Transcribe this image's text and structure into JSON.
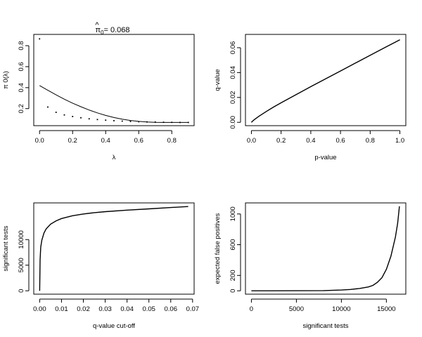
{
  "chart_data": [
    {
      "type": "scatter",
      "title_base": "π",
      "title_sub": "0",
      "title_rest": "= 0.068",
      "title_hat": "^",
      "xlabel": "λ",
      "ylabel": "π 0(λ)",
      "xlim": [
        -0.035,
        0.935
      ],
      "ylim": [
        0.0375,
        0.9075
      ],
      "xticks": [
        0,
        0.2,
        0.4,
        0.6,
        0.8
      ],
      "xtick_labels": [
        "0.0",
        "0.2",
        "0.4",
        "0.6",
        "0.8"
      ],
      "yticks": [
        0.2,
        0.4,
        0.6,
        0.8
      ],
      "ytick_labels": [
        "0.2",
        "0.4",
        "0.6",
        "0.8"
      ],
      "points": [
        [
          0.0,
          0.865
        ],
        [
          0.05,
          0.215
        ],
        [
          0.1,
          0.165
        ],
        [
          0.15,
          0.14
        ],
        [
          0.2,
          0.125
        ],
        [
          0.25,
          0.113
        ],
        [
          0.3,
          0.103
        ],
        [
          0.35,
          0.096
        ],
        [
          0.4,
          0.09
        ],
        [
          0.45,
          0.085
        ],
        [
          0.5,
          0.081
        ],
        [
          0.55,
          0.078
        ],
        [
          0.6,
          0.075
        ],
        [
          0.65,
          0.073
        ],
        [
          0.7,
          0.072
        ],
        [
          0.75,
          0.07
        ],
        [
          0.8,
          0.069
        ],
        [
          0.85,
          0.068
        ],
        [
          0.9,
          0.068
        ]
      ],
      "line": [
        [
          0.0,
          0.42
        ],
        [
          0.05,
          0.375
        ],
        [
          0.1,
          0.331
        ],
        [
          0.15,
          0.29
        ],
        [
          0.2,
          0.252
        ],
        [
          0.25,
          0.218
        ],
        [
          0.3,
          0.187
        ],
        [
          0.35,
          0.159
        ],
        [
          0.4,
          0.135
        ],
        [
          0.45,
          0.115
        ],
        [
          0.5,
          0.099
        ],
        [
          0.55,
          0.087
        ],
        [
          0.6,
          0.078
        ],
        [
          0.65,
          0.072
        ],
        [
          0.7,
          0.069
        ],
        [
          0.75,
          0.068
        ],
        [
          0.8,
          0.068
        ],
        [
          0.85,
          0.068
        ],
        [
          0.9,
          0.068
        ]
      ]
    },
    {
      "type": "line",
      "xlabel": "p-value",
      "ylabel": "q-value",
      "xlim": [
        -0.04,
        1.04
      ],
      "ylim": [
        -0.0027,
        0.0707
      ],
      "xticks": [
        0,
        0.2,
        0.4,
        0.6,
        0.8,
        1.0
      ],
      "xtick_labels": [
        "0.0",
        "0.2",
        "0.4",
        "0.6",
        "0.8",
        "1.0"
      ],
      "yticks": [
        0,
        0.02,
        0.04,
        0.06
      ],
      "ytick_labels": [
        "0.00",
        "0.02",
        "0.04",
        "0.06"
      ],
      "line": [
        [
          0.0,
          0.0
        ],
        [
          0.01,
          0.0012
        ],
        [
          0.02,
          0.0022
        ],
        [
          0.05,
          0.0048
        ],
        [
          0.1,
          0.0087
        ],
        [
          0.15,
          0.0123
        ],
        [
          0.2,
          0.0157
        ],
        [
          0.3,
          0.0222
        ],
        [
          0.4,
          0.0287
        ],
        [
          0.5,
          0.035
        ],
        [
          0.6,
          0.0413
        ],
        [
          0.7,
          0.0476
        ],
        [
          0.8,
          0.0539
        ],
        [
          0.9,
          0.0602
        ],
        [
          1.0,
          0.0664
        ]
      ]
    },
    {
      "type": "line",
      "xlabel": "q-value cut-off",
      "ylabel": "significant tests",
      "xlim": [
        -0.0027,
        0.0707
      ],
      "ylim": [
        -660,
        17160
      ],
      "xticks": [
        0,
        0.01,
        0.02,
        0.03,
        0.04,
        0.05,
        0.06,
        0.07
      ],
      "xtick_labels": [
        "0.00",
        "0.01",
        "0.02",
        "0.03",
        "0.04",
        "0.05",
        "0.06",
        "0.07"
      ],
      "yticks": [
        0,
        5000,
        10000
      ],
      "ytick_labels": [
        "0",
        "5000",
        "10000"
      ],
      "line": [
        [
          0.0,
          0
        ],
        [
          0.0002,
          6000
        ],
        [
          0.0005,
          8500
        ],
        [
          0.001,
          9900
        ],
        [
          0.002,
          11300
        ],
        [
          0.003,
          12100
        ],
        [
          0.005,
          13000
        ],
        [
          0.0075,
          13650
        ],
        [
          0.01,
          14100
        ],
        [
          0.015,
          14650
        ],
        [
          0.02,
          15000
        ],
        [
          0.025,
          15250
        ],
        [
          0.03,
          15450
        ],
        [
          0.04,
          15750
        ],
        [
          0.05,
          16000
        ],
        [
          0.06,
          16250
        ],
        [
          0.068,
          16450
        ]
      ]
    },
    {
      "type": "line",
      "xlabel": "significant tests",
      "ylabel": "expected false positives",
      "xlim": [
        -660,
        17160
      ],
      "ylim": [
        -44,
        1144
      ],
      "xticks": [
        0,
        5000,
        10000,
        15000
      ],
      "xtick_labels": [
        "0",
        "5000",
        "10000",
        "15000"
      ],
      "yticks": [
        0,
        200,
        600,
        1000
      ],
      "ytick_labels": [
        "0",
        "200",
        "600",
        "1000"
      ],
      "line": [
        [
          0,
          0
        ],
        [
          2000,
          0.3
        ],
        [
          5000,
          1
        ],
        [
          8000,
          3
        ],
        [
          10000,
          10
        ],
        [
          11000,
          17
        ],
        [
          12000,
          30
        ],
        [
          13000,
          50
        ],
        [
          13500,
          70
        ],
        [
          14000,
          110
        ],
        [
          14500,
          170
        ],
        [
          15000,
          280
        ],
        [
          15500,
          450
        ],
        [
          16000,
          700
        ],
        [
          16250,
          880
        ],
        [
          16450,
          1100
        ]
      ]
    }
  ]
}
